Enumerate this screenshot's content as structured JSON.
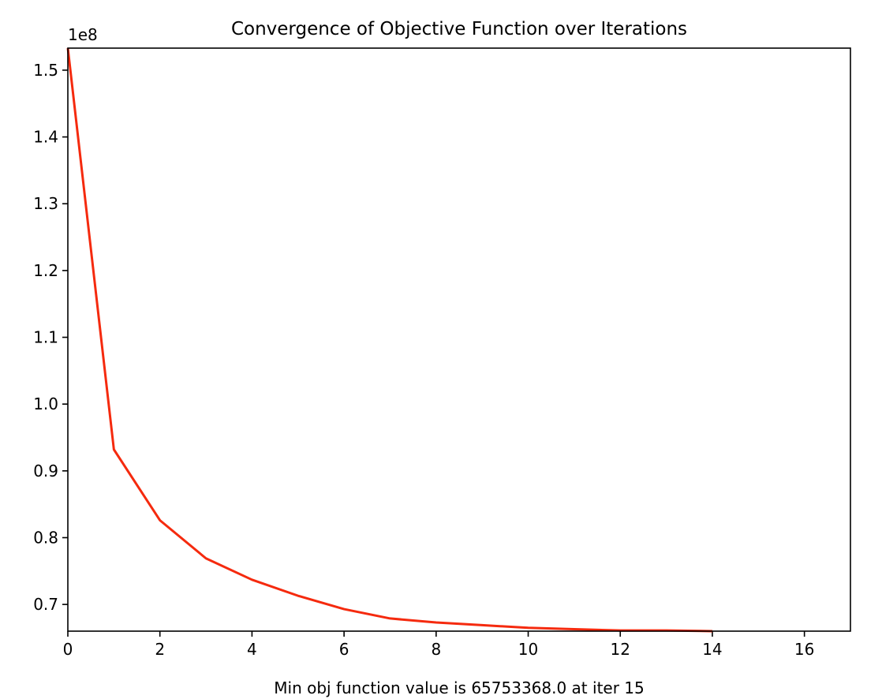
{
  "chart_data": {
    "type": "line",
    "title": "Convergence of Objective Function over Iterations",
    "xlabel": "Min obj function value is 65753368.0 at iter 15",
    "ylabel": "",
    "y_offset_label": "1e8",
    "xlim": [
      0,
      17
    ],
    "ylim": [
      0.66,
      1.533
    ],
    "x_ticks": [
      0,
      2,
      4,
      6,
      8,
      10,
      12,
      14,
      16
    ],
    "x_tick_labels": [
      "0",
      "2",
      "4",
      "6",
      "8",
      "10",
      "12",
      "14",
      "16"
    ],
    "y_ticks": [
      0.7,
      0.8,
      0.9,
      1.0,
      1.1,
      1.2,
      1.3,
      1.4,
      1.5
    ],
    "y_tick_labels": [
      "0.7",
      "0.8",
      "0.9",
      "1.0",
      "1.1",
      "1.2",
      "1.3",
      "1.4",
      "1.5"
    ],
    "grid": false,
    "series": [
      {
        "color": "#f52a0e",
        "x": [
          0,
          1,
          2,
          3,
          4,
          5,
          6,
          7,
          8,
          9,
          10,
          11,
          12,
          13,
          14
        ],
        "y": [
          1.533,
          0.932,
          0.826,
          0.769,
          0.737,
          0.713,
          0.693,
          0.679,
          0.673,
          0.669,
          0.665,
          0.663,
          0.661,
          0.661,
          0.66
        ]
      }
    ]
  }
}
